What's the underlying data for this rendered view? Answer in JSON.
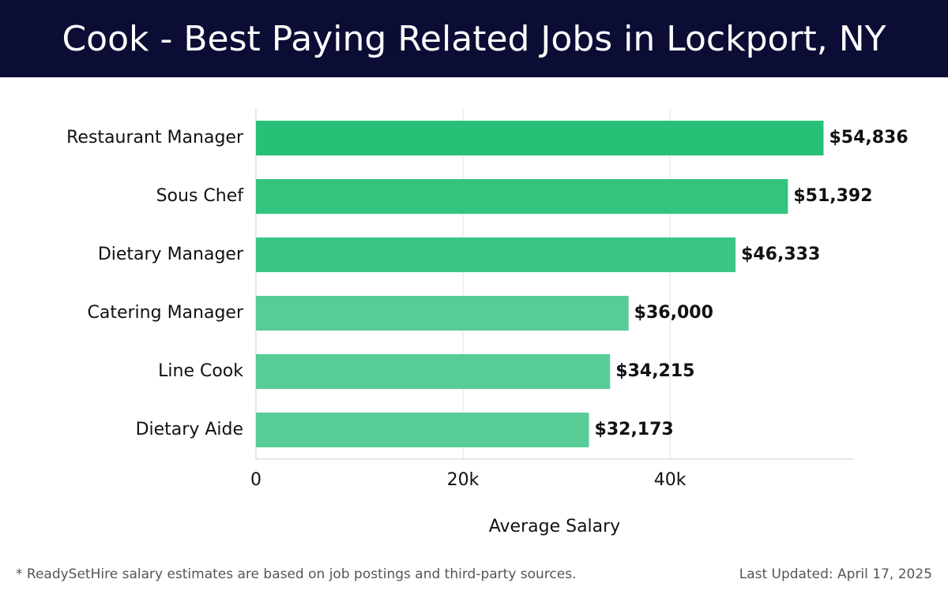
{
  "header": {
    "title": "Cook - Best Paying Related Jobs in Lockport, NY"
  },
  "chart_data": {
    "type": "bar",
    "orientation": "horizontal",
    "categories": [
      "Restaurant Manager",
      "Sous Chef",
      "Dietary Manager",
      "Catering Manager",
      "Line Cook",
      "Dietary Aide"
    ],
    "values": [
      54836,
      51392,
      46333,
      36000,
      34215,
      32173
    ],
    "data_labels": [
      "$54,836",
      "$51,392",
      "$46,333",
      "$36,000",
      "$34,215",
      "$32,173"
    ],
    "xlabel": "Average Salary",
    "ylabel": "",
    "xlim": [
      0,
      57700
    ],
    "x_ticks": [
      0,
      20000,
      40000
    ],
    "x_tick_labels": [
      "0",
      "20k",
      "40k"
    ],
    "grid": true,
    "colors": [
      "#28c076",
      "#33c47d",
      "#3cc584",
      "#57cc96",
      "#57cc96",
      "#57cc96"
    ]
  },
  "footer": {
    "note": "* ReadySetHire salary estimates are based on job postings and third-party sources.",
    "updated": "Last Updated: April 17, 2025"
  }
}
